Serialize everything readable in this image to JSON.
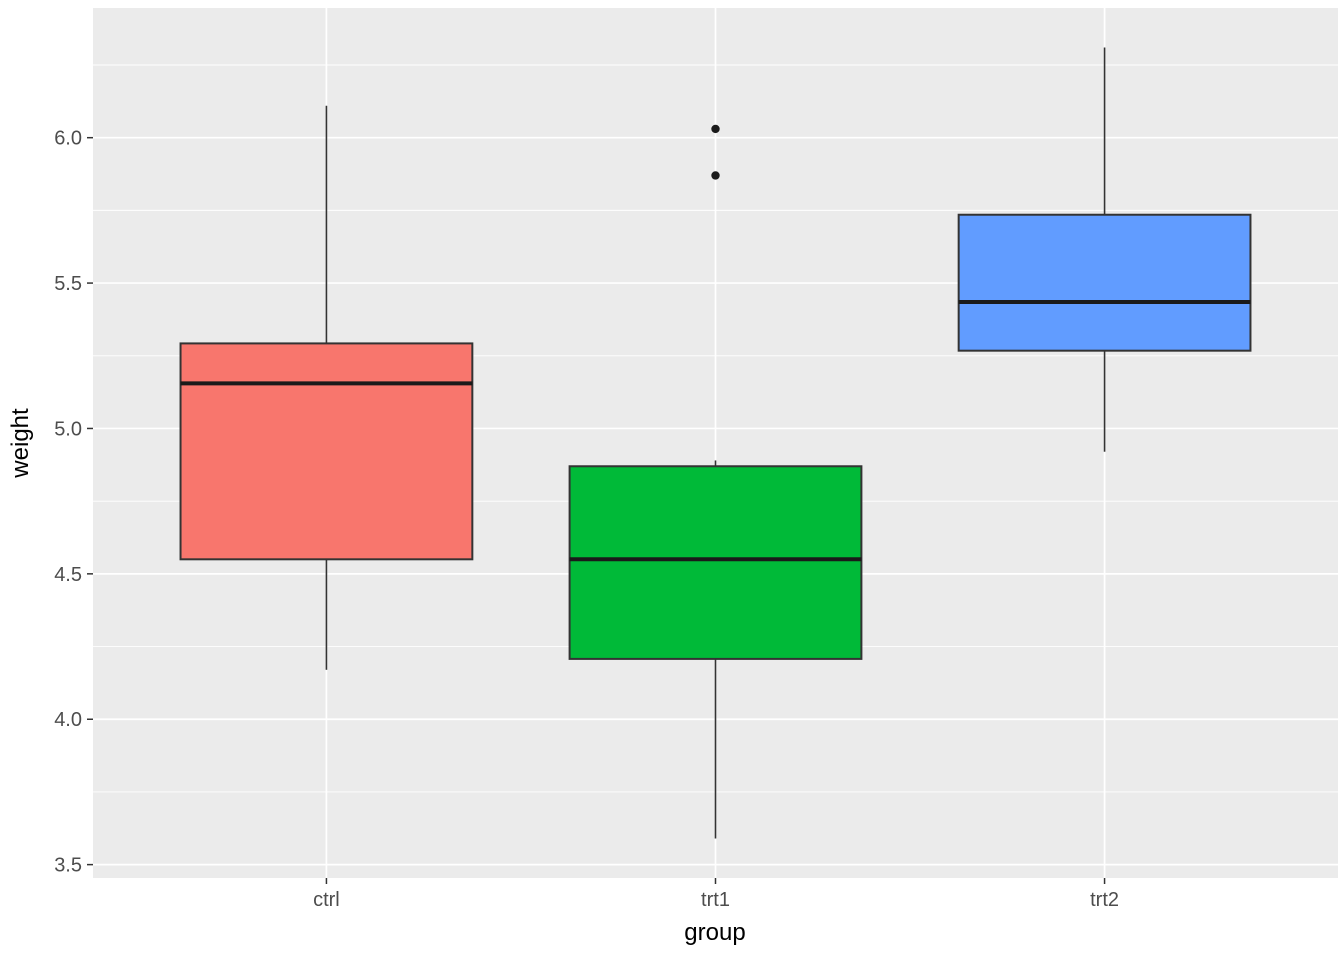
{
  "chart_data": {
    "type": "boxplot",
    "xlabel": "group",
    "ylabel": "weight",
    "categories": [
      "ctrl",
      "trt1",
      "trt2"
    ],
    "y_ticks": [
      3.5,
      4.0,
      4.5,
      5.0,
      5.5,
      6.0
    ],
    "y_minor_step": 0.25,
    "ylim": [
      3.454,
      6.446
    ],
    "grid": true,
    "legend": "none",
    "series": [
      {
        "name": "ctrl",
        "fill": "#F8766D",
        "whisker_low": 4.17,
        "q1": 4.55,
        "median": 5.155,
        "q3": 5.2925,
        "whisker_high": 6.11,
        "outliers": []
      },
      {
        "name": "trt1",
        "fill": "#00BA38",
        "whisker_low": 3.59,
        "q1": 4.2075,
        "median": 4.55,
        "q3": 4.87,
        "whisker_high": 4.89,
        "outliers": [
          5.87,
          6.03
        ]
      },
      {
        "name": "trt2",
        "fill": "#619CFF",
        "whisker_low": 4.92,
        "q1": 5.2675,
        "median": 5.435,
        "q3": 5.735,
        "whisker_high": 6.31,
        "outliers": []
      }
    ],
    "colors": {
      "figure_background": "#FFFFFF",
      "panel_background": "#EBEBEB",
      "grid": "#FFFFFF",
      "box_border": "#333333",
      "median": "#1A1A1A",
      "outlier": "#1A1A1A",
      "tick": "#333333",
      "tick_text": "#4D4D4D",
      "axis_title_text": "#000000"
    }
  }
}
